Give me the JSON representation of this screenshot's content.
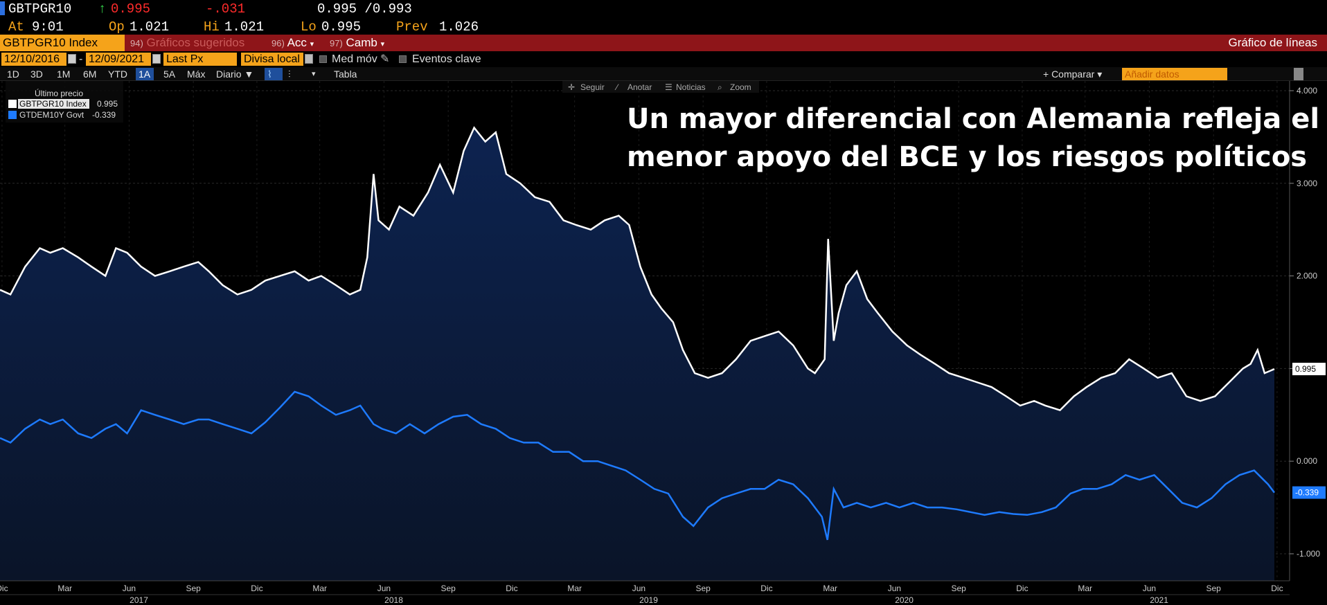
{
  "quote": {
    "ticker": "GBTPGR10",
    "arrow": "↑",
    "last": "0.995",
    "change": "-.031",
    "bid_ask": "0.995 /0.993",
    "at_label": "At",
    "at_value": "9:01",
    "op_label": "Op",
    "op_value": "1.021",
    "hi_label": "Hi",
    "hi_value": "1.021",
    "lo_label": "Lo",
    "lo_value": "0.995",
    "prev_label": "Prev",
    "prev_value": "1.026"
  },
  "bar": {
    "security": "GBTPGR10 Index",
    "sugg_num": "94)",
    "sugg_label": "Gráficos sugeridos",
    "acc_num": "96)",
    "acc_label": "Acc",
    "camb_num": "97)",
    "camb_label": "Camb",
    "title": "Gráfico de líneas"
  },
  "options": {
    "start_date": "12/10/2016",
    "dash": "-",
    "end_date": "12/09/2021",
    "field": "Last Px",
    "currency": "Divisa local",
    "moving_avg": "Med móv",
    "events": "Eventos clave"
  },
  "period": {
    "buttons": [
      "1D",
      "3D",
      "1M",
      "6M",
      "YTD",
      "1A",
      "5A",
      "Máx"
    ],
    "active": "1A",
    "frequency": "Diario ▼",
    "table": "Tabla",
    "compare": "+ Comparar ▾",
    "add_data_placeholder": "Añadir datos"
  },
  "chart_toolbar": {
    "follow": "Seguir",
    "annotate": "Anotar",
    "news": "Noticias",
    "zoom": "Zoom"
  },
  "legend": {
    "header": "Último precio",
    "items": [
      {
        "name": "GBTPGR10 Index",
        "value": "0.995",
        "color": "#ffffff"
      },
      {
        "name": "GTDEM10Y Govt",
        "value": "-0.339",
        "color": "#1e7bff"
      }
    ]
  },
  "colors": {
    "spread_line": "#ffffff",
    "bund_line": "#1e7bff",
    "area_fill": "#0b1a3a",
    "header_bar": "#8e1519",
    "accent": "#f5a31a"
  },
  "chart_data": {
    "type": "line",
    "title": "Un mayor diferencial con Alemania refleja el menor apoyo del BCE y los riesgos políticos",
    "x_range": [
      "2016-12-10",
      "2021-12-09"
    ],
    "ylim": [
      -1.3,
      4.0
    ],
    "y_ticks": [
      "4.000",
      "3.000",
      "2.000",
      "1.000",
      "0.000",
      "-1.000"
    ],
    "y_tick_values": [
      4,
      3,
      2,
      1,
      0,
      -1
    ],
    "x_ticks": [
      "Dic",
      "Mar",
      "Jun",
      "Sep",
      "Dic",
      "Mar",
      "Jun",
      "Sep",
      "Dic",
      "Mar",
      "Jun",
      "Sep",
      "Dic",
      "Mar",
      "Jun",
      "Sep",
      "Dic",
      "Mar",
      "Jun",
      "Sep",
      "Dic"
    ],
    "x_tick_dates": [
      "2016-12-01",
      "2017-03-01",
      "2017-06-01",
      "2017-09-01",
      "2017-12-01",
      "2018-03-01",
      "2018-06-01",
      "2018-09-01",
      "2018-12-01",
      "2019-03-01",
      "2019-06-01",
      "2019-09-01",
      "2019-12-01",
      "2020-03-01",
      "2020-06-01",
      "2020-09-01",
      "2020-12-01",
      "2021-03-01",
      "2021-06-01",
      "2021-09-01",
      "2021-12-01"
    ],
    "years": [
      "2017",
      "2018",
      "2019",
      "2020",
      "2021"
    ],
    "year_dates": [
      "2017-06-15",
      "2018-06-15",
      "2019-06-15",
      "2020-06-15",
      "2021-06-15"
    ],
    "grid": true,
    "legend_position": "top-left",
    "series": [
      {
        "name": "GBTPGR10 Index",
        "color": "#ffffff",
        "last_label": "0.995",
        "x": [
          "2016-12-10",
          "2016-12-25",
          "2017-01-15",
          "2017-02-05",
          "2017-02-20",
          "2017-03-10",
          "2017-04-01",
          "2017-04-20",
          "2017-05-10",
          "2017-05-25",
          "2017-06-10",
          "2017-06-30",
          "2017-07-20",
          "2017-08-10",
          "2017-08-30",
          "2017-09-20",
          "2017-10-05",
          "2017-10-25",
          "2017-11-15",
          "2017-12-05",
          "2017-12-25",
          "2018-01-15",
          "2018-02-05",
          "2018-02-25",
          "2018-03-15",
          "2018-04-05",
          "2018-04-25",
          "2018-05-10",
          "2018-05-20",
          "2018-05-29",
          "2018-06-05",
          "2018-06-20",
          "2018-07-05",
          "2018-07-25",
          "2018-08-15",
          "2018-09-01",
          "2018-09-20",
          "2018-10-05",
          "2018-10-20",
          "2018-11-05",
          "2018-11-20",
          "2018-12-05",
          "2018-12-25",
          "2019-01-15",
          "2019-02-05",
          "2019-02-25",
          "2019-03-15",
          "2019-04-05",
          "2019-04-25",
          "2019-05-15",
          "2019-05-30",
          "2019-06-15",
          "2019-07-01",
          "2019-07-15",
          "2019-08-01",
          "2019-08-15",
          "2019-09-01",
          "2019-09-20",
          "2019-10-10",
          "2019-10-30",
          "2019-11-20",
          "2019-12-10",
          "2019-12-30",
          "2020-01-20",
          "2020-02-10",
          "2020-02-20",
          "2020-03-05",
          "2020-03-10",
          "2020-03-18",
          "2020-03-25",
          "2020-04-05",
          "2020-04-20",
          "2020-05-05",
          "2020-05-20",
          "2020-06-10",
          "2020-07-01",
          "2020-07-20",
          "2020-08-10",
          "2020-08-30",
          "2020-09-20",
          "2020-10-10",
          "2020-10-30",
          "2020-11-20",
          "2020-12-10",
          "2020-12-30",
          "2021-01-15",
          "2021-02-05",
          "2021-02-25",
          "2021-03-15",
          "2021-04-05",
          "2021-04-25",
          "2021-05-15",
          "2021-06-05",
          "2021-06-25",
          "2021-07-15",
          "2021-08-05",
          "2021-08-25",
          "2021-09-15",
          "2021-10-05",
          "2021-10-25",
          "2021-11-05",
          "2021-11-15",
          "2021-11-25",
          "2021-12-09"
        ],
        "y": [
          1.85,
          1.8,
          2.1,
          2.3,
          2.25,
          2.3,
          2.2,
          2.1,
          2.0,
          2.3,
          2.25,
          2.1,
          2.0,
          2.05,
          2.1,
          2.15,
          2.05,
          1.9,
          1.8,
          1.85,
          1.95,
          2.0,
          2.05,
          1.95,
          2.0,
          1.9,
          1.8,
          1.85,
          2.2,
          3.1,
          2.6,
          2.5,
          2.75,
          2.65,
          2.9,
          3.2,
          2.9,
          3.35,
          3.6,
          3.45,
          3.55,
          3.1,
          3.0,
          2.85,
          2.8,
          2.6,
          2.55,
          2.5,
          2.6,
          2.65,
          2.55,
          2.1,
          1.8,
          1.65,
          1.5,
          1.2,
          0.95,
          0.9,
          0.95,
          1.1,
          1.3,
          1.35,
          1.4,
          1.25,
          1.0,
          0.95,
          1.1,
          2.4,
          1.3,
          1.6,
          1.9,
          2.05,
          1.75,
          1.6,
          1.4,
          1.25,
          1.15,
          1.05,
          0.95,
          0.9,
          0.85,
          0.8,
          0.7,
          0.6,
          0.65,
          0.6,
          0.55,
          0.7,
          0.8,
          0.9,
          0.95,
          1.1,
          1.0,
          0.9,
          0.95,
          0.7,
          0.65,
          0.7,
          0.85,
          1.0,
          1.05,
          1.2,
          0.95,
          0.995
        ]
      },
      {
        "name": "GTDEM10Y Govt",
        "color": "#1e7bff",
        "last_label": "-0.339",
        "x": [
          "2016-12-10",
          "2016-12-25",
          "2017-01-15",
          "2017-02-05",
          "2017-02-20",
          "2017-03-10",
          "2017-04-01",
          "2017-04-20",
          "2017-05-10",
          "2017-05-25",
          "2017-06-10",
          "2017-06-30",
          "2017-07-20",
          "2017-08-10",
          "2017-08-30",
          "2017-09-20",
          "2017-10-05",
          "2017-10-25",
          "2017-11-15",
          "2017-12-05",
          "2017-12-25",
          "2018-01-15",
          "2018-02-05",
          "2018-02-25",
          "2018-03-15",
          "2018-04-05",
          "2018-04-25",
          "2018-05-10",
          "2018-05-29",
          "2018-06-10",
          "2018-06-30",
          "2018-07-20",
          "2018-08-10",
          "2018-08-30",
          "2018-09-20",
          "2018-10-10",
          "2018-10-30",
          "2018-11-20",
          "2018-12-10",
          "2018-12-30",
          "2019-01-20",
          "2019-02-10",
          "2019-03-05",
          "2019-03-25",
          "2019-04-15",
          "2019-05-05",
          "2019-05-25",
          "2019-06-15",
          "2019-07-05",
          "2019-07-25",
          "2019-08-15",
          "2019-08-30",
          "2019-09-20",
          "2019-10-10",
          "2019-10-30",
          "2019-11-20",
          "2019-12-10",
          "2019-12-30",
          "2020-01-20",
          "2020-02-10",
          "2020-03-01",
          "2020-03-09",
          "2020-03-18",
          "2020-04-01",
          "2020-04-20",
          "2020-05-10",
          "2020-06-01",
          "2020-06-20",
          "2020-07-10",
          "2020-07-30",
          "2020-08-20",
          "2020-09-10",
          "2020-09-30",
          "2020-10-20",
          "2020-11-10",
          "2020-11-30",
          "2020-12-20",
          "2021-01-10",
          "2021-01-30",
          "2021-02-20",
          "2021-03-10",
          "2021-03-30",
          "2021-04-20",
          "2021-05-10",
          "2021-05-30",
          "2021-06-20",
          "2021-07-10",
          "2021-07-30",
          "2021-08-20",
          "2021-09-10",
          "2021-09-30",
          "2021-10-20",
          "2021-11-10",
          "2021-11-30",
          "2021-12-09"
        ],
        "y": [
          0.25,
          0.2,
          0.35,
          0.45,
          0.4,
          0.45,
          0.3,
          0.25,
          0.35,
          0.4,
          0.3,
          0.55,
          0.5,
          0.45,
          0.4,
          0.45,
          0.45,
          0.4,
          0.35,
          0.3,
          0.42,
          0.58,
          0.75,
          0.7,
          0.6,
          0.5,
          0.55,
          0.6,
          0.4,
          0.35,
          0.3,
          0.4,
          0.3,
          0.4,
          0.48,
          0.5,
          0.4,
          0.35,
          0.25,
          0.2,
          0.2,
          0.1,
          0.1,
          0.0,
          0.0,
          -0.05,
          -0.1,
          -0.2,
          -0.3,
          -0.35,
          -0.6,
          -0.7,
          -0.5,
          -0.4,
          -0.35,
          -0.3,
          -0.3,
          -0.2,
          -0.25,
          -0.4,
          -0.6,
          -0.85,
          -0.3,
          -0.5,
          -0.45,
          -0.5,
          -0.45,
          -0.5,
          -0.45,
          -0.5,
          -0.5,
          -0.52,
          -0.55,
          -0.58,
          -0.55,
          -0.57,
          -0.58,
          -0.55,
          -0.5,
          -0.35,
          -0.3,
          -0.3,
          -0.25,
          -0.15,
          -0.2,
          -0.15,
          -0.3,
          -0.45,
          -0.5,
          -0.4,
          -0.25,
          -0.15,
          -0.1,
          -0.25,
          -0.339
        ]
      }
    ]
  }
}
